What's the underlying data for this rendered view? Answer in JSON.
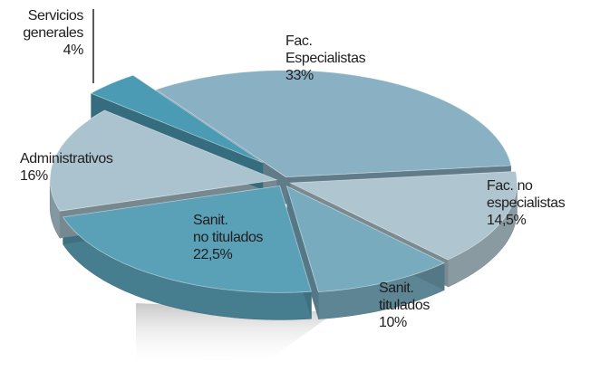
{
  "chart_data": {
    "type": "pie",
    "categories": [
      "Fac.\nEspecialistas",
      "Fac. no\nespecialistas",
      "Sanit.\ntitulados",
      "Sanit.\nno titulados",
      "Administrativos",
      "Servicios\ngenerales"
    ],
    "values": [
      33,
      14.5,
      10,
      22.5,
      16,
      4
    ],
    "value_labels": [
      "33%",
      "14,5%",
      "10%",
      "22,5%",
      "16%",
      "4%"
    ],
    "colors": [
      "#8ab1c3",
      "#afc5cf",
      "#78abbe",
      "#5aa0b7",
      "#aac3ce",
      "#4b9bb4"
    ]
  }
}
